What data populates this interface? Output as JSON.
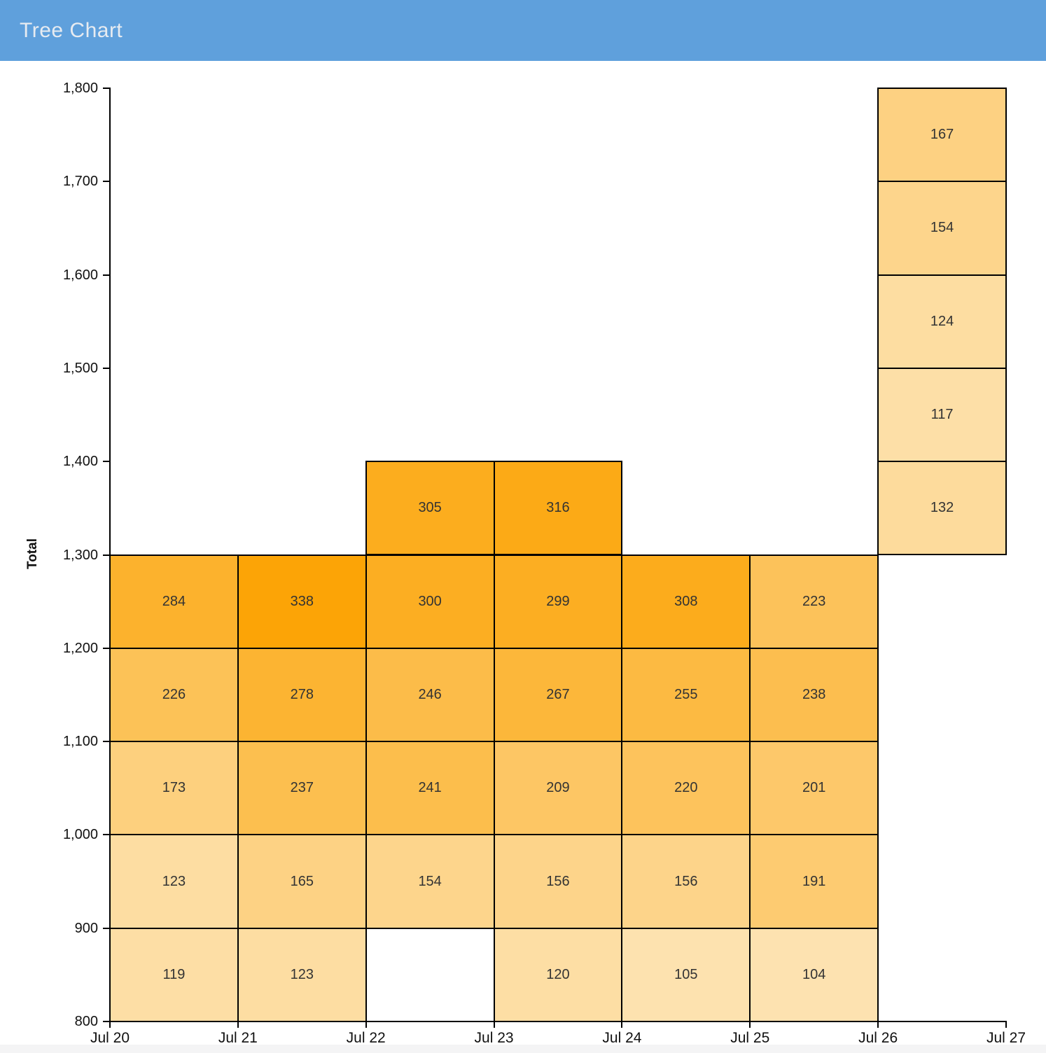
{
  "header": {
    "title": "Tree Chart",
    "background_color": "#5FA0DC",
    "text_color": "#E6EBF1"
  },
  "chart_data": {
    "type": "heatmap",
    "title": "Tree Chart",
    "ylabel": "Total",
    "xlabel": "",
    "ylim": [
      800,
      1800
    ],
    "grid": false,
    "legend": "none",
    "x_labels": [
      "Jul 20",
      "Jul 21",
      "Jul 22",
      "Jul 23",
      "Jul 24",
      "Jul 25",
      "Jul 26",
      "Jul 27"
    ],
    "y_tick_labels": [
      "800",
      "900",
      "1,000",
      "1,100",
      "1,200",
      "1,300",
      "1,400",
      "1,500",
      "1,600",
      "1,700",
      "1,800"
    ],
    "y_tick_values": [
      800,
      900,
      1000,
      1100,
      1200,
      1300,
      1400,
      1500,
      1600,
      1700,
      1800
    ],
    "color_scale": {
      "min_value": 104,
      "max_value": 338,
      "min_color": "#FDE2B0",
      "max_color": "#FCA406"
    },
    "cell_border_color": "#000000",
    "cell_text_color": "#333333",
    "columns": [
      {
        "label": "Jul 20",
        "cells": [
          {
            "y0": 800,
            "y1": 900,
            "value": 119
          },
          {
            "y0": 900,
            "y1": 1000,
            "value": 123
          },
          {
            "y0": 1000,
            "y1": 1100,
            "value": 173
          },
          {
            "y0": 1100,
            "y1": 1200,
            "value": 226
          },
          {
            "y0": 1200,
            "y1": 1300,
            "value": 284
          }
        ]
      },
      {
        "label": "Jul 21",
        "cells": [
          {
            "y0": 800,
            "y1": 900,
            "value": 123
          },
          {
            "y0": 900,
            "y1": 1000,
            "value": 165
          },
          {
            "y0": 1000,
            "y1": 1100,
            "value": 237
          },
          {
            "y0": 1100,
            "y1": 1200,
            "value": 278
          },
          {
            "y0": 1200,
            "y1": 1300,
            "value": 338
          }
        ]
      },
      {
        "label": "Jul 22",
        "cells": [
          {
            "y0": 900,
            "y1": 1000,
            "value": 154
          },
          {
            "y0": 1000,
            "y1": 1100,
            "value": 241
          },
          {
            "y0": 1100,
            "y1": 1200,
            "value": 246
          },
          {
            "y0": 1200,
            "y1": 1300,
            "value": 300
          },
          {
            "y0": 1300,
            "y1": 1400,
            "value": 305
          }
        ]
      },
      {
        "label": "Jul 23",
        "cells": [
          {
            "y0": 800,
            "y1": 900,
            "value": 120
          },
          {
            "y0": 900,
            "y1": 1000,
            "value": 156
          },
          {
            "y0": 1000,
            "y1": 1100,
            "value": 209
          },
          {
            "y0": 1100,
            "y1": 1200,
            "value": 267
          },
          {
            "y0": 1200,
            "y1": 1300,
            "value": 299
          },
          {
            "y0": 1300,
            "y1": 1400,
            "value": 316
          }
        ]
      },
      {
        "label": "Jul 24",
        "cells": [
          {
            "y0": 800,
            "y1": 900,
            "value": 105
          },
          {
            "y0": 900,
            "y1": 1000,
            "value": 156
          },
          {
            "y0": 1000,
            "y1": 1100,
            "value": 220
          },
          {
            "y0": 1100,
            "y1": 1200,
            "value": 255
          },
          {
            "y0": 1200,
            "y1": 1300,
            "value": 308
          }
        ]
      },
      {
        "label": "Jul 25",
        "cells": [
          {
            "y0": 800,
            "y1": 900,
            "value": 104
          },
          {
            "y0": 900,
            "y1": 1000,
            "value": 191
          },
          {
            "y0": 1000,
            "y1": 1100,
            "value": 201
          },
          {
            "y0": 1100,
            "y1": 1200,
            "value": 238
          },
          {
            "y0": 1200,
            "y1": 1300,
            "value": 223
          }
        ]
      },
      {
        "label": "Jul 26",
        "cells": [
          {
            "y0": 1300,
            "y1": 1400,
            "value": 132
          },
          {
            "y0": 1400,
            "y1": 1500,
            "value": 117
          },
          {
            "y0": 1500,
            "y1": 1600,
            "value": 124
          },
          {
            "y0": 1600,
            "y1": 1700,
            "value": 154
          },
          {
            "y0": 1700,
            "y1": 1800,
            "value": 167
          }
        ]
      }
    ]
  }
}
